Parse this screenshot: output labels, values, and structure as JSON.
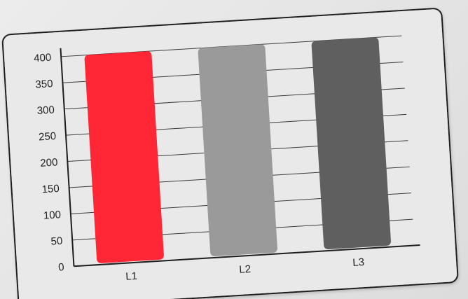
{
  "chart_data": {
    "type": "bar",
    "title": "",
    "xlabel": "",
    "ylabel": "",
    "categories": [
      "L1",
      "L2",
      "L3"
    ],
    "values": [
      400,
      400,
      400
    ],
    "colors": [
      "#ff2635",
      "#9a9a9a",
      "#5f5f5f"
    ],
    "ylim": [
      0,
      400
    ],
    "yticks": [
      "0",
      "50",
      "100",
      "150",
      "200",
      "250",
      "300",
      "350",
      "400"
    ],
    "grid": true,
    "legend": "none"
  }
}
